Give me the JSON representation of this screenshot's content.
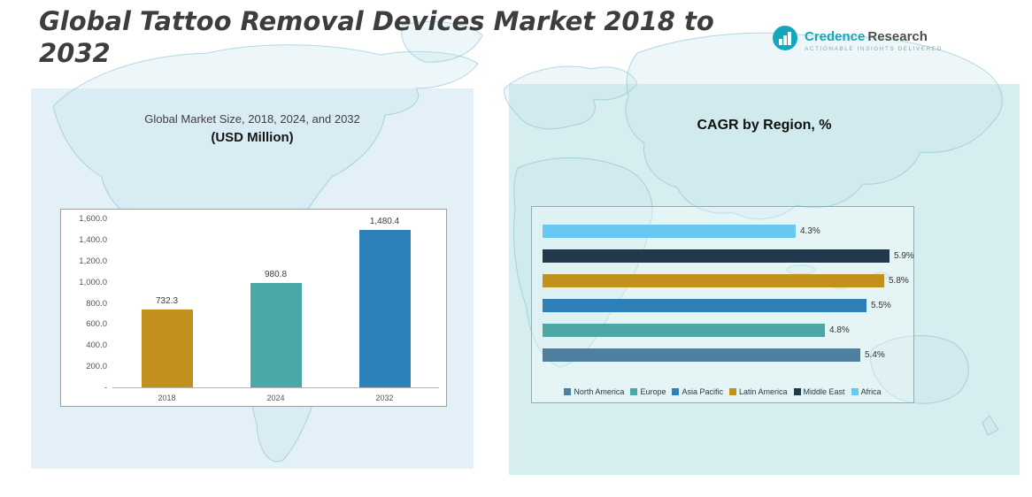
{
  "page": {
    "title_line1": "Global Tattoo Removal Devices Market 2018 to",
    "title_line2": "2032"
  },
  "logo": {
    "brand_primary": "Credence",
    "brand_secondary": "Research",
    "tagline": "Actionable Insights Delivered"
  },
  "left_panel": {
    "subtitle": "Global Market Size, 2018, 2024, and 2032",
    "unit_label": "(USD Million)"
  },
  "right_panel": {
    "title": "CAGR by Region, %"
  },
  "colors": {
    "gold": "#C2901C",
    "teal": "#4BA8A4",
    "blue": "#2E80B9",
    "dark_navy": "#21394A",
    "light_blue": "#69C8F2",
    "steel_blue": "#4E7F9E",
    "panel_left": "#E3F0F8",
    "panel_right": "#D7EEF0",
    "brand_teal": "#12A7BD"
  },
  "chart_data": [
    {
      "type": "bar",
      "title": "Global Market Size, 2018, 2024, and 2032",
      "subtitle": "(USD Million)",
      "categories": [
        "2018",
        "2024",
        "2032"
      ],
      "values": [
        732.3,
        980.8,
        1480.4
      ],
      "value_labels": [
        "732.3",
        "980.8",
        "1,480.4"
      ],
      "bar_colors": [
        "#C2901C",
        "#4BA8A4",
        "#2E80B9"
      ],
      "xlabel": "",
      "ylabel": "",
      "ylim": [
        0,
        1600
      ],
      "yticks": [
        "1,600.0",
        "1,400.0",
        "1,200.0",
        "1,000.0",
        "800.0",
        "600.0",
        "400.0",
        "200.0",
        "-"
      ],
      "grid": false,
      "legend_position": "none"
    },
    {
      "type": "bar",
      "orientation": "horizontal",
      "title": "CAGR by Region, %",
      "categories": [
        "Africa",
        "Middle East",
        "Latin America",
        "Asia Pacific",
        "Europe",
        "North America"
      ],
      "values": [
        4.3,
        5.9,
        5.8,
        5.5,
        4.8,
        5.4
      ],
      "value_labels": [
        "4.3%",
        "5.9%",
        "5.8%",
        "5.5%",
        "4.8%",
        "5.4%"
      ],
      "bar_colors": [
        "#69C8F2",
        "#21394A",
        "#C2901C",
        "#2E80B9",
        "#4BA8A4",
        "#4E7F9E"
      ],
      "xlim": [
        0,
        6.15
      ],
      "grid": false,
      "legend_position": "bottom",
      "legend": [
        {
          "label": "North America",
          "color": "#4E7F9E"
        },
        {
          "label": "Europe",
          "color": "#4BA8A4"
        },
        {
          "label": "Asia Pacific",
          "color": "#2E80B9"
        },
        {
          "label": "Latin America",
          "color": "#C2901C"
        },
        {
          "label": "Middle East",
          "color": "#21394A"
        },
        {
          "label": "Africa",
          "color": "#69C8F2"
        }
      ]
    }
  ]
}
